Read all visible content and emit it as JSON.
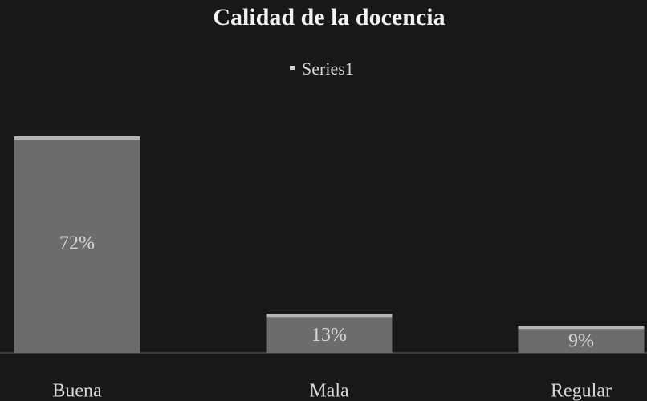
{
  "chart_data": {
    "type": "bar",
    "title": "Calidad de la docencia",
    "categories": [
      "Buena",
      "Mala",
      "Regular"
    ],
    "series": [
      {
        "name": "Series1",
        "color": "#6c6c6c",
        "values": [
          72,
          13,
          9
        ],
        "value_labels": [
          "72%",
          "13%",
          "9%"
        ]
      }
    ]
  }
}
